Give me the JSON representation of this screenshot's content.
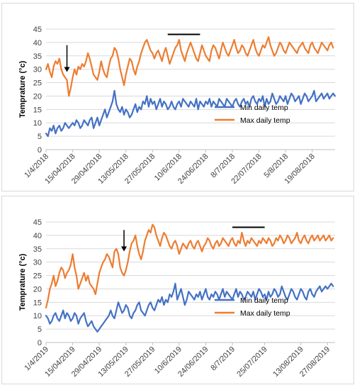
{
  "chart_data": [
    {
      "type": "line",
      "ylabel": "Temprature (°c)",
      "ylim": [
        0,
        45
      ],
      "yticks": [
        0,
        5,
        10,
        15,
        20,
        25,
        30,
        35,
        40,
        45
      ],
      "grid": true,
      "legend_position": "bottom-right",
      "xtick_labels": [
        "1/4/2018",
        "15/04/2018",
        "29/04/2018",
        "13/05/2018",
        "27/05/2018",
        "10/6/2018",
        "24/06/2018",
        "8/7/2018",
        "22/07/2018",
        "5/8/2018",
        "19/08/2018"
      ],
      "xtick_days": [
        0,
        14,
        28,
        42,
        56,
        70,
        84,
        98,
        112,
        126,
        140
      ],
      "x_range_days": [
        0,
        152
      ],
      "annotations": [
        {
          "type": "arrow",
          "day": 11,
          "from_value": 39,
          "to_value": 29
        },
        {
          "type": "bar",
          "day_start": 64,
          "day_end": 81,
          "value": 43
        }
      ],
      "series": [
        {
          "name": "Min daily temp",
          "color": "#4472c4",
          "values": [
            6,
            5,
            8,
            7,
            9,
            6,
            8,
            9,
            7,
            8,
            10,
            9,
            8,
            9,
            10,
            9,
            11,
            10,
            8,
            9,
            11,
            10,
            9,
            11,
            12,
            8,
            10,
            12,
            9,
            11,
            13,
            15,
            12,
            14,
            16,
            18,
            22,
            17,
            15,
            14,
            16,
            13,
            15,
            14,
            12,
            13,
            15,
            17,
            14,
            16,
            15,
            18,
            17,
            20,
            16,
            19,
            17,
            18,
            15,
            17,
            19,
            16,
            18,
            17,
            15,
            16,
            18,
            16,
            15,
            17,
            18,
            16,
            19,
            18,
            17,
            16,
            18,
            17,
            16,
            19,
            15,
            18,
            17,
            16,
            18,
            17,
            19,
            16,
            18,
            17,
            16,
            19,
            18,
            17,
            16,
            19,
            18,
            17,
            16,
            18,
            19,
            17,
            16,
            18,
            19,
            17,
            18,
            16,
            19,
            20,
            18,
            17,
            19,
            18,
            20,
            16,
            19,
            17,
            18,
            21,
            19,
            17,
            18,
            20,
            19,
            18,
            20,
            17,
            19,
            21,
            20,
            18,
            19,
            20,
            17,
            19,
            21,
            20,
            18,
            19,
            20,
            22,
            18,
            19,
            20,
            21,
            19,
            20,
            21,
            19,
            20,
            21,
            20
          ]
        },
        {
          "name": "Max daily temp",
          "color": "#ed7d31",
          "values": [
            30,
            32,
            29,
            27,
            31,
            33,
            32,
            34,
            30,
            28,
            27,
            26,
            20,
            23,
            27,
            30,
            28,
            31,
            30,
            32,
            31,
            33,
            36,
            34,
            31,
            28,
            27,
            26,
            29,
            33,
            30,
            28,
            27,
            31,
            34,
            35,
            38,
            37,
            34,
            30,
            27,
            24,
            28,
            31,
            34,
            33,
            30,
            28,
            31,
            33,
            36,
            38,
            40,
            41,
            39,
            37,
            36,
            34,
            36,
            37,
            35,
            33,
            36,
            38,
            35,
            32,
            34,
            36,
            38,
            39,
            41,
            37,
            35,
            33,
            36,
            38,
            40,
            38,
            36,
            34,
            33,
            36,
            39,
            37,
            35,
            34,
            33,
            37,
            39,
            38,
            36,
            34,
            37,
            40,
            38,
            36,
            35,
            37,
            39,
            41,
            38,
            36,
            37,
            39,
            38,
            36,
            35,
            37,
            39,
            41,
            38,
            36,
            35,
            37,
            39,
            38,
            40,
            42,
            39,
            37,
            35,
            36,
            38,
            40,
            39,
            37,
            36,
            38,
            40,
            39,
            38,
            37,
            36,
            38,
            39,
            40,
            38,
            37,
            36,
            39,
            40,
            38,
            37,
            36,
            38,
            40,
            39,
            38,
            37,
            39,
            40,
            38
          ]
        }
      ]
    },
    {
      "type": "line",
      "ylabel": "Temprature (°c)",
      "ylim": [
        0,
        45
      ],
      "yticks": [
        0,
        5,
        10,
        15,
        20,
        25,
        30,
        35,
        40,
        45
      ],
      "grid": true,
      "legend_position": "bottom-right",
      "xtick_labels": [
        "1/4/2019",
        "15/04/2019",
        "29/04/2019",
        "13/05/2019",
        "27/05/2019",
        "10/6/2019",
        "24/06/2019",
        "8/7/2019",
        "25/07/2019",
        "13/08/2019",
        "27/08/2019"
      ],
      "xtick_days": [
        0,
        14,
        28,
        42,
        56,
        70,
        84,
        98,
        115,
        134,
        148
      ],
      "x_range_days": [
        0,
        152
      ],
      "annotations": [
        {
          "type": "arrow",
          "day": 41,
          "from_value": 42,
          "to_value": 34
        },
        {
          "type": "bar",
          "day_start": 98,
          "day_end": 115,
          "value": 43
        }
      ],
      "series": [
        {
          "name": "Min daily temp",
          "color": "#4472c4",
          "values": [
            10,
            9,
            7,
            8,
            10,
            11,
            9,
            8,
            10,
            12,
            9,
            11,
            10,
            8,
            9,
            11,
            10,
            7,
            9,
            10,
            11,
            8,
            6,
            7,
            8,
            6,
            5,
            4,
            5,
            6,
            7,
            8,
            9,
            10,
            12,
            10,
            9,
            12,
            15,
            13,
            11,
            12,
            14,
            13,
            10,
            9,
            11,
            12,
            14,
            15,
            12,
            11,
            10,
            12,
            14,
            15,
            13,
            12,
            14,
            16,
            15,
            17,
            14,
            16,
            15,
            18,
            17,
            19,
            22,
            16,
            18,
            20,
            17,
            14,
            16,
            19,
            18,
            17,
            16,
            18,
            17,
            19,
            16,
            18,
            20,
            17,
            16,
            18,
            17,
            19,
            18,
            16,
            18,
            20,
            17,
            19,
            18,
            17,
            16,
            18,
            20,
            17,
            19,
            18,
            16,
            17,
            19,
            18,
            17,
            19,
            16,
            18,
            20,
            19,
            17,
            18,
            16,
            19,
            17,
            18,
            20,
            19,
            17,
            18,
            21,
            19,
            17,
            16,
            18,
            20,
            19,
            17,
            16,
            18,
            20,
            19,
            17,
            16,
            19,
            20,
            18,
            17,
            19,
            20,
            21,
            19,
            20,
            21,
            20,
            21,
            22,
            21
          ]
        },
        {
          "name": "Max daily temp",
          "color": "#ed7d31",
          "values": [
            13,
            16,
            20,
            22,
            25,
            21,
            23,
            26,
            28,
            27,
            24,
            26,
            27,
            29,
            33,
            28,
            25,
            20,
            22,
            24,
            26,
            23,
            25,
            22,
            21,
            20,
            18,
            22,
            26,
            28,
            30,
            31,
            33,
            32,
            30,
            28,
            34,
            35,
            33,
            28,
            26,
            25,
            27,
            30,
            34,
            37,
            38,
            40,
            36,
            33,
            31,
            34,
            38,
            40,
            42,
            41,
            44,
            43,
            40,
            38,
            36,
            39,
            41,
            40,
            38,
            36,
            35,
            37,
            38,
            36,
            33,
            35,
            37,
            36,
            35,
            37,
            38,
            36,
            35,
            37,
            38,
            36,
            34,
            36,
            37,
            39,
            38,
            36,
            35,
            37,
            38,
            36,
            37,
            39,
            38,
            37,
            36,
            38,
            39,
            37,
            36,
            38,
            37,
            41,
            38,
            36,
            38,
            37,
            39,
            38,
            37,
            36,
            38,
            37,
            39,
            38,
            37,
            39,
            38,
            36,
            37,
            39,
            38,
            40,
            39,
            37,
            38,
            40,
            39,
            37,
            38,
            39,
            41,
            38,
            37,
            39,
            40,
            38,
            37,
            39,
            40,
            38,
            39,
            40,
            38,
            39,
            40,
            38,
            39,
            40,
            38,
            39
          ]
        }
      ]
    }
  ]
}
